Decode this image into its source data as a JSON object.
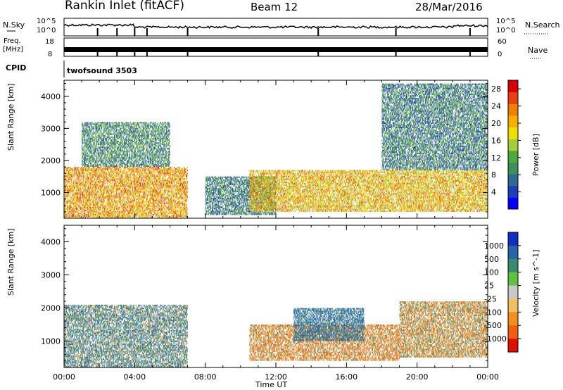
{
  "header": {
    "station": "Rankin Inlet (fitACF)",
    "beam": "Beam 12",
    "date": "28/Mar/2016"
  },
  "panels": {
    "noise": {
      "left_label": "N.Sky",
      "left_ticks": [
        "10^5",
        "10^0"
      ],
      "right_label": "N.Search",
      "right_ticks": [
        "10^5",
        "10^0"
      ]
    },
    "freq": {
      "left_label_1": "Freq.",
      "left_label_2": "[MHz]",
      "left_ticks": [
        "18",
        "8"
      ],
      "right_label": "Nave",
      "right_ticks": [
        "60",
        "0"
      ]
    },
    "cpid": {
      "label": "CPID",
      "value": "twofsound 3503"
    }
  },
  "chart_data": [
    {
      "type": "heatmap",
      "title": "",
      "xlabel": "",
      "ylabel": "Slant Range [km]",
      "x_ticks": [
        "00:00",
        "04:00",
        "08:00",
        "12:00",
        "16:00",
        "20:00",
        "00:00"
      ],
      "y_ticks": [
        1000,
        2000,
        3000,
        4000
      ],
      "ylim": [
        200,
        4500
      ],
      "colorbar": {
        "label": "Power [dB]",
        "ticks": [
          4,
          8,
          12,
          16,
          20,
          24,
          28
        ],
        "range": [
          0,
          30
        ],
        "colors": [
          "#0000ff",
          "#1f3fb8",
          "#2f6b8f",
          "#3f8f5a",
          "#4fa83c",
          "#9fcf3f",
          "#f0e000",
          "#f7b000",
          "#f08000",
          "#e84010",
          "#d80000"
        ]
      },
      "echo_regions": [
        {
          "t0": 0.0,
          "t1": 7.0,
          "r0": 200,
          "r1": 1800,
          "level": 22
        },
        {
          "t0": 1.0,
          "t1": 6.0,
          "r0": 1800,
          "r1": 3200,
          "level": 9
        },
        {
          "t0": 8.0,
          "t1": 12.0,
          "r0": 300,
          "r1": 1500,
          "level": 8
        },
        {
          "t0": 10.5,
          "t1": 24.0,
          "r0": 400,
          "r1": 1700,
          "level": 20
        },
        {
          "t0": 18.0,
          "t1": 24.0,
          "r0": 1700,
          "r1": 4400,
          "level": 8
        }
      ]
    },
    {
      "type": "heatmap",
      "title": "",
      "xlabel": "Time UT",
      "ylabel": "Slant Range [km]",
      "x_ticks": [
        "00:00",
        "04:00",
        "08:00",
        "12:00",
        "16:00",
        "20:00",
        "00:00"
      ],
      "y_ticks": [
        1000,
        2000,
        3000,
        4000
      ],
      "ylim": [
        200,
        4500
      ],
      "colorbar": {
        "label": "Velocity [m s^-1]",
        "ticks": [
          "1000",
          "500",
          "100",
          "25",
          "-25",
          "-100",
          "-500",
          "-1000"
        ],
        "colors": [
          "#1030c0",
          "#2a64a8",
          "#3a8a70",
          "#60c040",
          "#c8c8c8",
          "#f0c060",
          "#f09020",
          "#f06010",
          "#e01000"
        ]
      },
      "echo_regions": [
        {
          "t0": 0.0,
          "t1": 7.0,
          "r0": 200,
          "r1": 2100,
          "level": 200
        },
        {
          "t0": 10.5,
          "t1": 19.0,
          "r0": 400,
          "r1": 1500,
          "level": -200
        },
        {
          "t0": 13.0,
          "t1": 17.0,
          "r0": 1000,
          "r1": 2000,
          "level": 400
        },
        {
          "t0": 19.0,
          "t1": 24.0,
          "r0": 500,
          "r1": 2200,
          "level": -100
        }
      ]
    }
  ]
}
